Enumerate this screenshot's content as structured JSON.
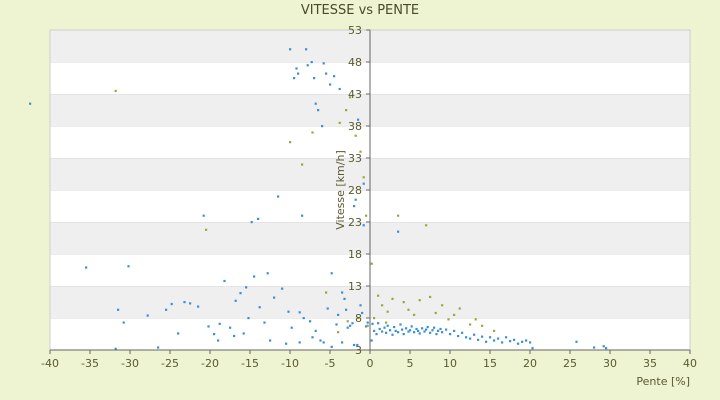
{
  "chart_data": {
    "type": "scatter",
    "title": "VITESSE vs PENTE",
    "xlabel": "Pente [%]",
    "ylabel": "Vitesse [km/h]",
    "xlim": [
      -40,
      40
    ],
    "ylim": [
      3,
      53
    ],
    "xticks": [
      "-40",
      "-35",
      "-30",
      "-25",
      "-20",
      "-15",
      "-10",
      "-5",
      "0",
      "5",
      "10",
      "15",
      "20",
      "25",
      "30",
      "35",
      "40"
    ],
    "yticks": [
      "3",
      "8",
      "13",
      "18",
      "23",
      "28",
      "33",
      "38",
      "43",
      "48",
      "53"
    ],
    "grid": "horizontal alternating bands",
    "series": [
      {
        "color": "#3a8fd9",
        "points": [
          [
            -35.5,
            15.9
          ],
          [
            -31.5,
            9.3
          ],
          [
            -30.8,
            7.3
          ],
          [
            -30.2,
            16.1
          ],
          [
            -31.8,
            3.2
          ],
          [
            -27.8,
            8.4
          ],
          [
            -26.5,
            3.4
          ],
          [
            -25.5,
            9.3
          ],
          [
            -24.8,
            10.2
          ],
          [
            -24.0,
            5.6
          ],
          [
            -23.2,
            10.5
          ],
          [
            -22.5,
            10.3
          ],
          [
            -21.5,
            9.8
          ],
          [
            -20.2,
            6.7
          ],
          [
            -20.8,
            24.0
          ],
          [
            -19.5,
            5.5
          ],
          [
            -19.0,
            4.5
          ],
          [
            -18.8,
            7.1
          ],
          [
            -18.2,
            13.8
          ],
          [
            -17.5,
            6.5
          ],
          [
            -17.0,
            5.2
          ],
          [
            -16.8,
            10.7
          ],
          [
            -16.2,
            11.9
          ],
          [
            -15.8,
            5.6
          ],
          [
            -15.5,
            12.8
          ],
          [
            -15.2,
            8.0
          ],
          [
            -14.8,
            23.0
          ],
          [
            -14.5,
            14.5
          ],
          [
            -14.0,
            23.5
          ],
          [
            -13.8,
            9.7
          ],
          [
            -13.2,
            7.3
          ],
          [
            -12.8,
            15.0
          ],
          [
            -12.5,
            4.5
          ],
          [
            -12.0,
            11.2
          ],
          [
            -11.5,
            27.0
          ],
          [
            -11.0,
            12.6
          ],
          [
            -10.5,
            4.0
          ],
          [
            -10.2,
            9.0
          ],
          [
            -10.0,
            50.0
          ],
          [
            -9.8,
            6.5
          ],
          [
            -9.5,
            45.5
          ],
          [
            -9.2,
            47.0
          ],
          [
            -9.0,
            46.2
          ],
          [
            -8.8,
            8.9
          ],
          [
            -8.5,
            24.0
          ],
          [
            -8.3,
            8.0
          ],
          [
            -8.0,
            50.0
          ],
          [
            -7.8,
            47.5
          ],
          [
            -7.5,
            7.5
          ],
          [
            -7.3,
            48.0
          ],
          [
            -7.0,
            45.5
          ],
          [
            -6.8,
            41.5
          ],
          [
            -6.5,
            40.5
          ],
          [
            -6.2,
            4.5
          ],
          [
            -6.0,
            38.0
          ],
          [
            -5.8,
            47.8
          ],
          [
            -5.5,
            46.2
          ],
          [
            -5.3,
            9.5
          ],
          [
            -5.0,
            44.5
          ],
          [
            -4.8,
            15.0
          ],
          [
            -4.5,
            45.8
          ],
          [
            -4.2,
            7.0
          ],
          [
            -4.0,
            8.5
          ],
          [
            -3.8,
            43.8
          ],
          [
            -3.5,
            12.0
          ],
          [
            -3.2,
            11.0
          ],
          [
            -3.0,
            9.3
          ],
          [
            -2.8,
            6.5
          ],
          [
            -2.5,
            6.8
          ],
          [
            -2.2,
            7.2
          ],
          [
            -2.0,
            25.5
          ],
          [
            -1.8,
            26.5
          ],
          [
            -1.5,
            39.0
          ],
          [
            -1.2,
            10.0
          ],
          [
            -1.0,
            8.8
          ],
          [
            -0.8,
            29.0
          ],
          [
            -0.5,
            6.7
          ],
          [
            -0.3,
            7.3
          ],
          [
            0.3,
            7.1
          ],
          [
            0.5,
            6.0
          ],
          [
            0.8,
            5.5
          ],
          [
            1.0,
            7.2
          ],
          [
            1.2,
            6.3
          ],
          [
            1.5,
            5.9
          ],
          [
            1.8,
            6.5
          ],
          [
            2.0,
            5.7
          ],
          [
            2.2,
            6.8
          ],
          [
            2.5,
            6.1
          ],
          [
            2.8,
            5.4
          ],
          [
            3.0,
            6.6
          ],
          [
            3.2,
            6.0
          ],
          [
            3.5,
            5.8
          ],
          [
            3.8,
            7.0
          ],
          [
            4.0,
            6.2
          ],
          [
            4.2,
            5.5
          ],
          [
            4.5,
            6.4
          ],
          [
            4.8,
            5.9
          ],
          [
            5.0,
            6.1
          ],
          [
            5.2,
            6.7
          ],
          [
            5.5,
            5.8
          ],
          [
            5.8,
            6.3
          ],
          [
            6.0,
            6.0
          ],
          [
            6.2,
            5.6
          ],
          [
            6.5,
            6.4
          ],
          [
            6.8,
            5.9
          ],
          [
            7.0,
            6.2
          ],
          [
            7.2,
            6.6
          ],
          [
            7.5,
            5.7
          ],
          [
            7.8,
            6.1
          ],
          [
            8.0,
            6.5
          ],
          [
            8.3,
            5.5
          ],
          [
            8.5,
            6.0
          ],
          [
            8.8,
            6.3
          ],
          [
            9.0,
            5.8
          ],
          [
            9.5,
            6.2
          ],
          [
            10.0,
            5.5
          ],
          [
            10.5,
            6.0
          ],
          [
            11.0,
            5.2
          ],
          [
            11.5,
            5.7
          ],
          [
            12.0,
            5.0
          ],
          [
            12.5,
            4.8
          ],
          [
            13.0,
            5.4
          ],
          [
            13.5,
            4.6
          ],
          [
            14.0,
            5.1
          ],
          [
            14.5,
            4.3
          ],
          [
            15.0,
            5.0
          ],
          [
            15.5,
            4.5
          ],
          [
            16.0,
            4.8
          ],
          [
            16.5,
            4.2
          ],
          [
            17.0,
            5.0
          ],
          [
            17.5,
            4.4
          ],
          [
            18.0,
            4.6
          ],
          [
            18.5,
            4.0
          ],
          [
            19.0,
            4.3
          ],
          [
            19.5,
            4.5
          ],
          [
            20.0,
            4.2
          ],
          [
            20.3,
            3.3
          ],
          [
            25.8,
            4.3
          ],
          [
            28.0,
            3.4
          ],
          [
            29.2,
            3.6
          ],
          [
            29.5,
            3.3
          ],
          [
            3.5,
            21.5
          ],
          [
            -0.8,
            22.5
          ],
          [
            -3.5,
            4.2
          ],
          [
            -2.0,
            3.8
          ],
          [
            -6.8,
            6.0
          ],
          [
            -7.2,
            5.0
          ],
          [
            -8.8,
            4.2
          ],
          [
            -5.8,
            4.2
          ],
          [
            -4.8,
            3.5
          ],
          [
            -1.6,
            3.8
          ],
          [
            0.2,
            4.5
          ]
        ]
      },
      {
        "color": "#9aa83a",
        "points": [
          [
            -31.8,
            43.5
          ],
          [
            -20.5,
            21.8
          ],
          [
            -10.0,
            35.5
          ],
          [
            -8.5,
            32.0
          ],
          [
            -7.2,
            37.0
          ],
          [
            -5.5,
            12.0
          ],
          [
            -3.8,
            38.5
          ],
          [
            -3.0,
            40.5
          ],
          [
            -2.5,
            42.5
          ],
          [
            -1.8,
            36.5
          ],
          [
            -1.2,
            34.0
          ],
          [
            -0.8,
            30.0
          ],
          [
            -0.5,
            24.0
          ],
          [
            0.2,
            16.5
          ],
          [
            0.5,
            8.0
          ],
          [
            1.0,
            11.5
          ],
          [
            1.5,
            10.0
          ],
          [
            2.2,
            9.0
          ],
          [
            2.8,
            11.0
          ],
          [
            3.5,
            24.0
          ],
          [
            4.2,
            10.5
          ],
          [
            4.8,
            9.3
          ],
          [
            5.5,
            8.5
          ],
          [
            6.2,
            10.8
          ],
          [
            7.0,
            22.5
          ],
          [
            7.5,
            11.3
          ],
          [
            8.2,
            8.8
          ],
          [
            9.0,
            10.0
          ],
          [
            9.8,
            7.8
          ],
          [
            10.5,
            8.5
          ],
          [
            11.2,
            9.5
          ],
          [
            12.5,
            7.0
          ],
          [
            13.2,
            7.8
          ],
          [
            14.0,
            6.8
          ],
          [
            15.5,
            6.0
          ],
          [
            -4.0,
            5.8
          ],
          [
            -2.8,
            7.5
          ],
          [
            -1.5,
            8.0
          ],
          [
            -0.3,
            6.8
          ],
          [
            2.0,
            7.3
          ]
        ]
      }
    ],
    "outlier_marks": [
      [
        -42.5,
        41.5
      ]
    ]
  }
}
